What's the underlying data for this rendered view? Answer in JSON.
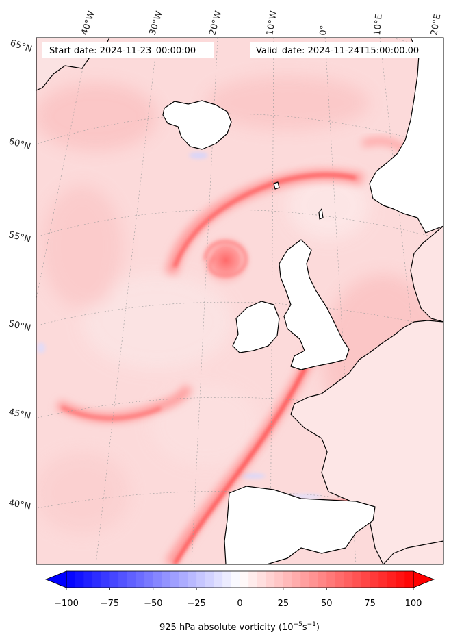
{
  "header": {
    "start_date": "Start date: 2024-11-23_00:00:00",
    "valid_date": "Valid_date: 2024-11-24T15:00:00.00"
  },
  "map": {
    "longitude_labels": [
      "40°W",
      "30°W",
      "20°W",
      "10°W",
      "0°",
      "10°E",
      "20°E"
    ],
    "latitude_labels": [
      "65°N",
      "60°N",
      "55°N",
      "50°N",
      "45°N",
      "40°N"
    ]
  },
  "colorbar": {
    "tick_labels": [
      "−100",
      "−75",
      "−50",
      "−25",
      "0",
      "25",
      "50",
      "75",
      "100"
    ],
    "label_text": "925 hPa absolute vorticity (10",
    "label_exp1": "−5",
    "label_mid": "s",
    "label_exp2": "−1",
    "label_close": ")",
    "vmin": -100,
    "vmax": 100,
    "colors": {
      "min": "#0000ff",
      "mid": "#ffffff",
      "max": "#ff0000"
    }
  }
}
